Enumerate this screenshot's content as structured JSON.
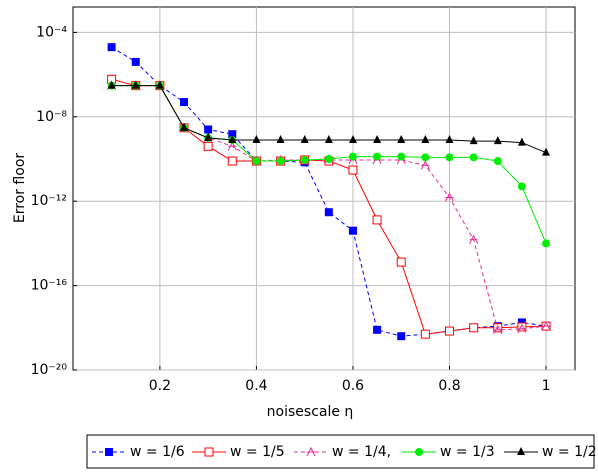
{
  "chart_data": {
    "type": "line",
    "x_label": "noisescale η",
    "y_label": "Error floor",
    "x": [
      0.1,
      0.15,
      0.2,
      0.25,
      0.3,
      0.35,
      0.4,
      0.45,
      0.5,
      0.55,
      0.6,
      0.65,
      0.7,
      0.75,
      0.8,
      0.85,
      0.9,
      0.95,
      1.0
    ],
    "xlim": [
      0.02,
      1.06
    ],
    "xticks": [
      0.2,
      0.4,
      0.6,
      0.8,
      1
    ],
    "ylim": [
      1e-20,
      0.0016
    ],
    "yticks": [
      {
        "value": 1e-20,
        "label": "10⁻²⁰"
      },
      {
        "value": 1e-16,
        "label": "10⁻¹⁶"
      },
      {
        "value": 1e-12,
        "label": "10⁻¹²"
      },
      {
        "value": 1e-08,
        "label": "10⁻⁸"
      },
      {
        "value": 0.0001,
        "label": "10⁻⁴"
      }
    ],
    "log_y": true,
    "grid": true,
    "legend": "bottom",
    "series": [
      {
        "name": "w = 1/6",
        "color": "#0000ff",
        "dash": true,
        "marker": "square-filled",
        "values": [
          2e-05,
          4e-06,
          3e-07,
          5e-08,
          2.5e-09,
          1.5e-09,
          8e-11,
          8e-11,
          7e-11,
          3e-13,
          4e-14,
          8e-19,
          4e-19,
          5e-19,
          7e-19,
          1e-18,
          1.2e-18,
          1.8e-18,
          1.2e-18
        ]
      },
      {
        "name": "w = 1/5",
        "color": "#ff0000",
        "dash": false,
        "marker": "square-open",
        "values": [
          6e-07,
          3e-07,
          3e-07,
          3e-09,
          4e-10,
          8e-11,
          8e-11,
          8e-11,
          9e-11,
          8e-11,
          3e-11,
          1.3e-13,
          1.3e-15,
          5e-19,
          7e-19,
          1e-18,
          1e-18,
          1.1e-18,
          1.2e-18
        ]
      },
      {
        "name": "w = 1/4,",
        "color": "#e0309a",
        "dash": true,
        "marker": "star",
        "values": [
          3e-07,
          3e-07,
          3e-07,
          3e-09,
          1e-09,
          4e-10,
          8e-11,
          9e-11,
          9e-11,
          9e-11,
          9e-11,
          9e-11,
          9e-11,
          5e-11,
          1.5e-12,
          1.5e-14,
          8e-19,
          9e-19,
          1.2e-18
        ]
      },
      {
        "name": "w = 1/3",
        "color": "#00ee00",
        "dash": false,
        "marker": "circle",
        "values": [
          3e-07,
          3e-07,
          3e-07,
          3e-09,
          1e-09,
          8e-10,
          8e-11,
          8e-11,
          9e-11,
          1e-10,
          1.3e-10,
          1.3e-10,
          1.3e-10,
          1.2e-10,
          1.2e-10,
          1.2e-10,
          8e-11,
          5e-12,
          1e-14
        ]
      },
      {
        "name": "w = 1/2",
        "color": "#000000",
        "dash": false,
        "marker": "triangle",
        "values": [
          3e-07,
          3e-07,
          3e-07,
          3e-09,
          1e-09,
          8e-10,
          8e-10,
          8e-10,
          8e-10,
          8e-10,
          8e-10,
          8e-10,
          8e-10,
          8e-10,
          8e-10,
          7e-10,
          7e-10,
          6e-10,
          2e-10
        ]
      }
    ]
  }
}
